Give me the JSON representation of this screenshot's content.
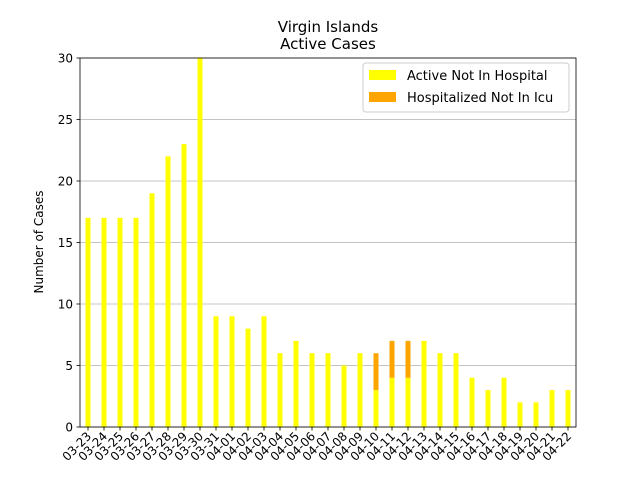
{
  "chart_data": {
    "type": "bar",
    "stacked": true,
    "title": "Virgin Islands",
    "subtitle": "Active Cases",
    "xlabel": "",
    "ylabel": "Number of Cases",
    "ylim": [
      0,
      30
    ],
    "yticks": [
      0,
      5,
      10,
      15,
      20,
      25,
      30
    ],
    "grid": "horizontal",
    "legend_position": "top-right",
    "categories": [
      "03-23",
      "03-24",
      "03-25",
      "03-26",
      "03-27",
      "03-28",
      "03-29",
      "03-30",
      "03-31",
      "04-01",
      "04-02",
      "04-03",
      "04-04",
      "04-05",
      "04-06",
      "04-07",
      "04-08",
      "04-09",
      "04-10",
      "04-11",
      "04-12",
      "04-13",
      "04-14",
      "04-15",
      "04-16",
      "04-17",
      "04-18",
      "04-19",
      "04-20",
      "04-21",
      "04-22"
    ],
    "series": [
      {
        "name": "Active Not In Hospital",
        "color": "#ffff00",
        "values": [
          17,
          17,
          17,
          17,
          19,
          22,
          23,
          30,
          9,
          9,
          8,
          9,
          6,
          7,
          6,
          6,
          5,
          6,
          3,
          4,
          4,
          7,
          6,
          6,
          4,
          3,
          4,
          2,
          2,
          3,
          3
        ]
      },
      {
        "name": "Hospitalized Not In Icu",
        "color": "#ffa500",
        "values": [
          0,
          0,
          0,
          0,
          0,
          0,
          0,
          0,
          0,
          0,
          0,
          0,
          0,
          0,
          0,
          0,
          0,
          0,
          3,
          3,
          3,
          0,
          0,
          0,
          0,
          0,
          0,
          0,
          0,
          0,
          0
        ]
      }
    ]
  }
}
